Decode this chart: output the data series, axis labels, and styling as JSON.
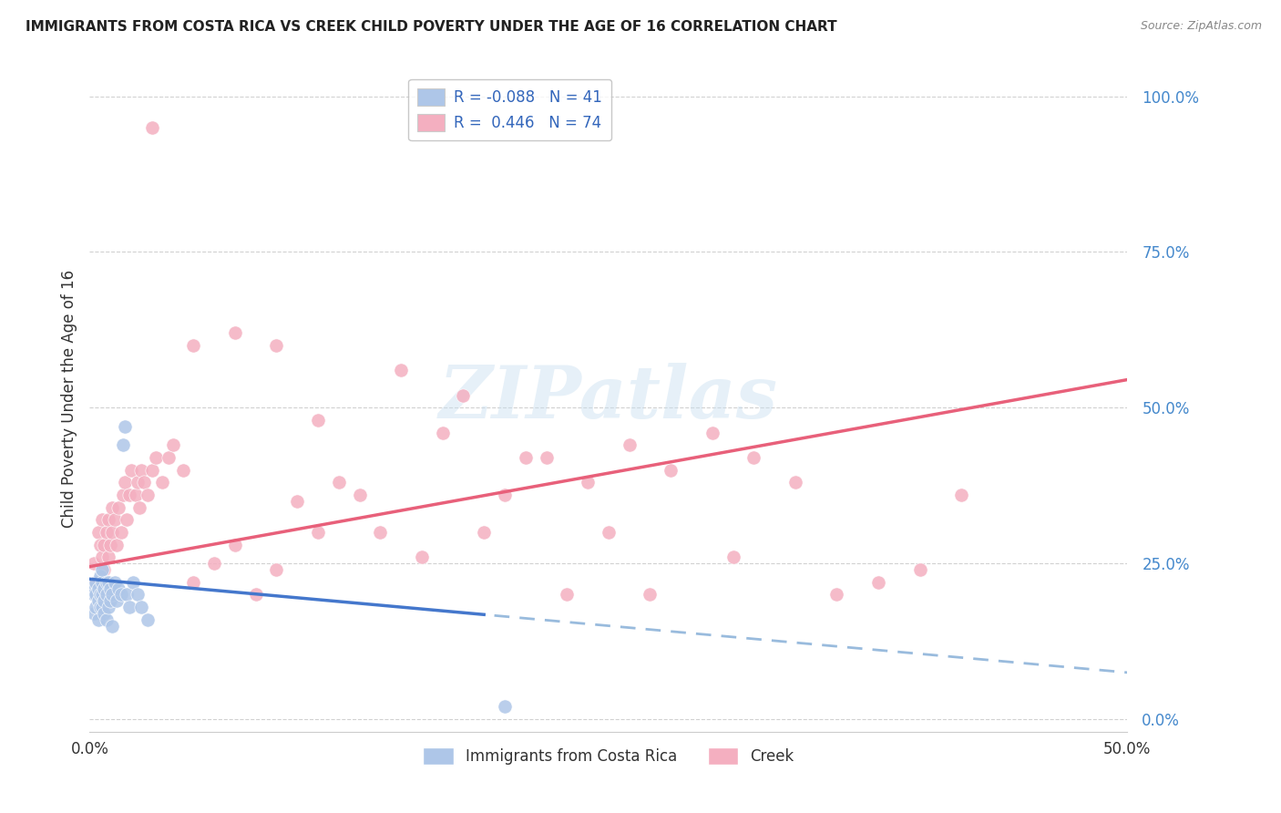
{
  "title": "IMMIGRANTS FROM COSTA RICA VS CREEK CHILD POVERTY UNDER THE AGE OF 16 CORRELATION CHART",
  "source": "Source: ZipAtlas.com",
  "ylabel": "Child Poverty Under the Age of 16",
  "xlim": [
    0.0,
    0.5
  ],
  "ylim": [
    -0.02,
    1.05
  ],
  "xticks": [
    0.0,
    0.1,
    0.2,
    0.3,
    0.4,
    0.5
  ],
  "xtick_labels": [
    "0.0%",
    "",
    "",
    "",
    "",
    "50.0%"
  ],
  "yticks": [
    0.0,
    0.25,
    0.5,
    0.75,
    1.0
  ],
  "ytick_labels_right": [
    "0.0%",
    "25.0%",
    "50.0%",
    "75.0%",
    "100.0%"
  ],
  "legend_r1": "R = -0.088",
  "legend_n1": "N = 41",
  "legend_r2": "R =  0.446",
  "legend_n2": "N = 74",
  "color_blue": "#aec6e8",
  "color_pink": "#f4afc0",
  "line_blue_solid": "#4477cc",
  "line_blue_dash": "#99bbdd",
  "line_pink": "#e8607a",
  "watermark_text": "ZIPatlas",
  "background_color": "#ffffff",
  "grid_color": "#cccccc",
  "blue_r": -0.088,
  "pink_r": 0.446,
  "blue_scatter_x": [
    0.001,
    0.002,
    0.002,
    0.003,
    0.003,
    0.003,
    0.004,
    0.004,
    0.004,
    0.005,
    0.005,
    0.005,
    0.006,
    0.006,
    0.006,
    0.006,
    0.007,
    0.007,
    0.007,
    0.008,
    0.008,
    0.008,
    0.009,
    0.009,
    0.01,
    0.01,
    0.011,
    0.011,
    0.012,
    0.013,
    0.014,
    0.015,
    0.016,
    0.017,
    0.018,
    0.019,
    0.021,
    0.023,
    0.025,
    0.028,
    0.2
  ],
  "blue_scatter_y": [
    0.21,
    0.17,
    0.2,
    0.2,
    0.22,
    0.18,
    0.19,
    0.16,
    0.21,
    0.18,
    0.2,
    0.23,
    0.18,
    0.2,
    0.22,
    0.24,
    0.19,
    0.21,
    0.17,
    0.2,
    0.22,
    0.16,
    0.18,
    0.22,
    0.19,
    0.21,
    0.15,
    0.2,
    0.22,
    0.19,
    0.21,
    0.2,
    0.44,
    0.47,
    0.2,
    0.18,
    0.22,
    0.2,
    0.18,
    0.16,
    0.02
  ],
  "pink_scatter_x": [
    0.002,
    0.003,
    0.004,
    0.005,
    0.005,
    0.006,
    0.006,
    0.007,
    0.007,
    0.008,
    0.008,
    0.009,
    0.009,
    0.01,
    0.011,
    0.011,
    0.012,
    0.013,
    0.014,
    0.015,
    0.016,
    0.017,
    0.018,
    0.019,
    0.02,
    0.022,
    0.023,
    0.024,
    0.025,
    0.026,
    0.028,
    0.03,
    0.032,
    0.035,
    0.038,
    0.04,
    0.045,
    0.05,
    0.06,
    0.07,
    0.08,
    0.09,
    0.1,
    0.11,
    0.12,
    0.14,
    0.16,
    0.18,
    0.2,
    0.22,
    0.24,
    0.26,
    0.28,
    0.3,
    0.32,
    0.34,
    0.36,
    0.38,
    0.4,
    0.42,
    0.03,
    0.05,
    0.07,
    0.09,
    0.11,
    0.13,
    0.15,
    0.17,
    0.19,
    0.21,
    0.23,
    0.25,
    0.27,
    0.31
  ],
  "pink_scatter_y": [
    0.25,
    0.22,
    0.3,
    0.28,
    0.2,
    0.26,
    0.32,
    0.24,
    0.28,
    0.3,
    0.22,
    0.26,
    0.32,
    0.28,
    0.3,
    0.34,
    0.32,
    0.28,
    0.34,
    0.3,
    0.36,
    0.38,
    0.32,
    0.36,
    0.4,
    0.36,
    0.38,
    0.34,
    0.4,
    0.38,
    0.36,
    0.4,
    0.42,
    0.38,
    0.42,
    0.44,
    0.4,
    0.22,
    0.25,
    0.28,
    0.2,
    0.24,
    0.35,
    0.3,
    0.38,
    0.3,
    0.26,
    0.52,
    0.36,
    0.42,
    0.38,
    0.44,
    0.4,
    0.46,
    0.42,
    0.38,
    0.2,
    0.22,
    0.24,
    0.36,
    0.95,
    0.6,
    0.62,
    0.6,
    0.48,
    0.36,
    0.56,
    0.46,
    0.3,
    0.42,
    0.2,
    0.3,
    0.2,
    0.26
  ],
  "blue_line_x0": 0.0,
  "blue_line_x_solid_end": 0.19,
  "blue_line_x_dash_start": 0.195,
  "blue_line_x1": 0.5,
  "blue_line_y_at_0": 0.225,
  "blue_line_slope": -0.3,
  "pink_line_y_at_0": 0.245,
  "pink_line_y_at_50": 0.545
}
